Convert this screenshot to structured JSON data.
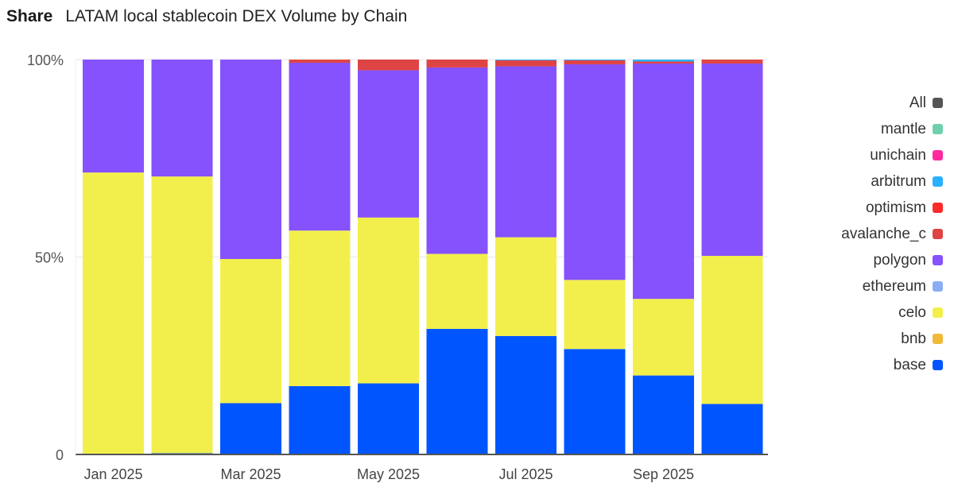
{
  "header": {
    "share_label": "Share",
    "title": "LATAM local stablecoin DEX Volume by Chain"
  },
  "chart_data": {
    "type": "bar",
    "stacked": true,
    "normalized": true,
    "title": "LATAM local stablecoin DEX Volume by Chain",
    "xlabel": "",
    "ylabel": "",
    "ylim": [
      0,
      100
    ],
    "y_ticks": [
      {
        "value": 0,
        "label": "0"
      },
      {
        "value": 50,
        "label": "50%"
      },
      {
        "value": 100,
        "label": "100%"
      }
    ],
    "categories": [
      "Jan 2025",
      "Feb 2025",
      "Mar 2025",
      "Apr 2025",
      "May 2025",
      "Jun 2025",
      "Jul 2025",
      "Aug 2025",
      "Sep 2025",
      "Oct 2025"
    ],
    "x_tick_labels": [
      {
        "index": 0,
        "label": "Jan 2025"
      },
      {
        "index": 2,
        "label": "Mar 2025"
      },
      {
        "index": 4,
        "label": "May 2025"
      },
      {
        "index": 6,
        "label": "Jul 2025"
      },
      {
        "index": 8,
        "label": "Sep 2025"
      }
    ],
    "series": [
      {
        "name": "base",
        "color": "#0055ff",
        "values": [
          0,
          0.3,
          13,
          17.3,
          18,
          31.8,
          30,
          26.7,
          20,
          12.8
        ]
      },
      {
        "name": "bnb",
        "color": "#f0b93a",
        "values": [
          0,
          0,
          0,
          0,
          0,
          0,
          0,
          0,
          0,
          0
        ]
      },
      {
        "name": "celo",
        "color": "#f2ef4c",
        "values": [
          71.4,
          70.1,
          36.5,
          39.4,
          42,
          19,
          25,
          17.5,
          19.4,
          37.5
        ]
      },
      {
        "name": "ethereum",
        "color": "#8aadf4",
        "values": [
          0,
          0,
          0,
          0,
          0,
          0,
          0,
          0,
          0,
          0
        ]
      },
      {
        "name": "polygon",
        "color": "#8552fd",
        "values": [
          28.6,
          29.6,
          50.5,
          42.5,
          37.3,
          47.2,
          43.3,
          54.6,
          59.6,
          48.7
        ]
      },
      {
        "name": "avalanche_c",
        "color": "#df4444",
        "values": [
          0,
          0,
          0,
          0.8,
          2.7,
          2,
          1.5,
          1,
          0.5,
          1
        ]
      },
      {
        "name": "optimism",
        "color": "#ff2a2a",
        "values": [
          0,
          0,
          0,
          0,
          0,
          0,
          0,
          0,
          0,
          0
        ]
      },
      {
        "name": "arbitrum",
        "color": "#2ab0ff",
        "values": [
          0,
          0,
          0,
          0,
          0,
          0,
          0.2,
          0.2,
          0.5,
          0
        ]
      },
      {
        "name": "unichain",
        "color": "#ff2a9e",
        "values": [
          0,
          0,
          0,
          0,
          0,
          0,
          0,
          0,
          0,
          0
        ]
      },
      {
        "name": "mantle",
        "color": "#6fd0ab",
        "values": [
          0,
          0,
          0,
          0,
          0,
          0,
          0,
          0,
          0,
          0
        ]
      }
    ],
    "legend": {
      "placement": "right",
      "items": [
        {
          "name": "All",
          "color": "#555555"
        },
        {
          "name": "mantle",
          "color": "#6fd0ab"
        },
        {
          "name": "unichain",
          "color": "#ff2a9e"
        },
        {
          "name": "arbitrum",
          "color": "#2ab0ff"
        },
        {
          "name": "optimism",
          "color": "#ff2a2a"
        },
        {
          "name": "avalanche_c",
          "color": "#df4444"
        },
        {
          "name": "polygon",
          "color": "#8552fd"
        },
        {
          "name": "ethereum",
          "color": "#8aadf4"
        },
        {
          "name": "celo",
          "color": "#f2ef4c"
        },
        {
          "name": "bnb",
          "color": "#f0b93a"
        },
        {
          "name": "base",
          "color": "#0055ff"
        }
      ]
    },
    "grid": true
  }
}
